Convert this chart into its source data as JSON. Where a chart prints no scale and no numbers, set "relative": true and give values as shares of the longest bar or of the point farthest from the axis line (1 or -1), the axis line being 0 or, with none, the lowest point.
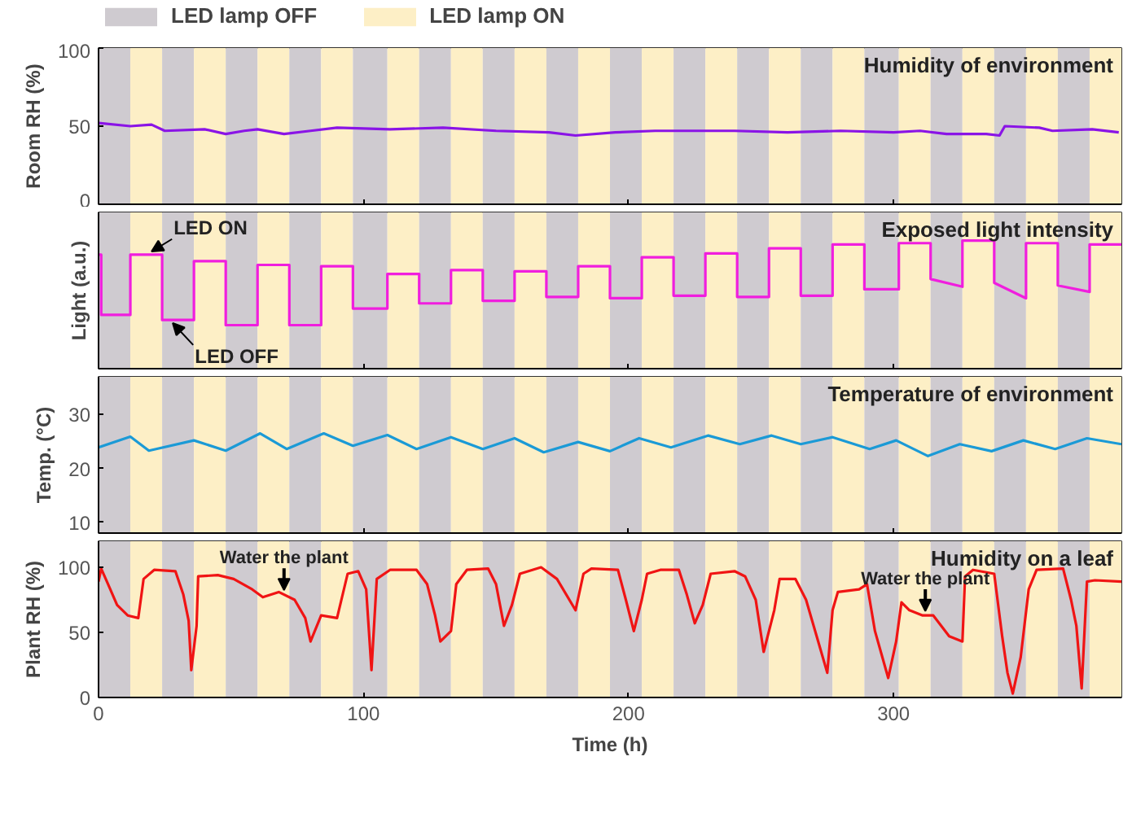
{
  "chart_data": [
    {
      "type": "line",
      "title": "Humidity of environment",
      "ylabel": "Room RH (%)",
      "xlim": [
        0,
        386
      ],
      "xticks": [
        0,
        100,
        200,
        300
      ],
      "ylim": [
        0,
        100
      ],
      "yticks": [
        0,
        50,
        100
      ],
      "tick_labels": "y",
      "legend": "top",
      "grid": false,
      "series": [
        {
          "color": "#8a14e6",
          "x": [
            0,
            12,
            20,
            25,
            40,
            48,
            55,
            60,
            70,
            80,
            90,
            110,
            130,
            150,
            170,
            180,
            195,
            210,
            240,
            260,
            280,
            300,
            310,
            320,
            335,
            340,
            342,
            355,
            360,
            375,
            385
          ],
          "values": [
            52,
            50,
            51,
            47,
            48,
            45,
            47,
            48,
            45,
            47,
            49,
            48,
            49,
            47,
            46,
            44,
            46,
            47,
            47,
            46,
            47,
            46,
            47,
            45,
            45,
            44,
            50,
            49,
            47,
            48,
            46
          ]
        }
      ],
      "bands": [
        {
          "axis": "x",
          "from": 0,
          "to": 12,
          "color": "#cfcbd0",
          "label": "LED lamp OFF"
        },
        {
          "axis": "x",
          "from": 12,
          "to": 24,
          "color": "#fdefc6",
          "label": "LED lamp ON"
        },
        {
          "axis": "x",
          "from": 24,
          "to": 36,
          "color": "#cfcbd0"
        },
        {
          "axis": "x",
          "from": 36,
          "to": 48,
          "color": "#fdefc6"
        },
        {
          "axis": "x",
          "from": 48,
          "to": 60,
          "color": "#cfcbd0"
        },
        {
          "axis": "x",
          "from": 60,
          "to": 72,
          "color": "#fdefc6"
        },
        {
          "axis": "x",
          "from": 72,
          "to": 84,
          "color": "#cfcbd0"
        },
        {
          "axis": "x",
          "from": 84,
          "to": 96,
          "color": "#fdefc6"
        },
        {
          "axis": "x",
          "from": 96,
          "to": 109,
          "color": "#cfcbd0"
        },
        {
          "axis": "x",
          "from": 109,
          "to": 121,
          "color": "#fdefc6"
        },
        {
          "axis": "x",
          "from": 121,
          "to": 133,
          "color": "#cfcbd0"
        },
        {
          "axis": "x",
          "from": 133,
          "to": 145,
          "color": "#fdefc6"
        },
        {
          "axis": "x",
          "from": 145,
          "to": 157,
          "color": "#cfcbd0"
        },
        {
          "axis": "x",
          "from": 157,
          "to": 169,
          "color": "#fdefc6"
        },
        {
          "axis": "x",
          "from": 169,
          "to": 181,
          "color": "#cfcbd0"
        },
        {
          "axis": "x",
          "from": 181,
          "to": 193,
          "color": "#fdefc6"
        },
        {
          "axis": "x",
          "from": 193,
          "to": 205,
          "color": "#cfcbd0"
        },
        {
          "axis": "x",
          "from": 205,
          "to": 217,
          "color": "#fdefc6"
        },
        {
          "axis": "x",
          "from": 217,
          "to": 229,
          "color": "#cfcbd0"
        },
        {
          "axis": "x",
          "from": 229,
          "to": 241,
          "color": "#fdefc6"
        },
        {
          "axis": "x",
          "from": 241,
          "to": 253,
          "color": "#cfcbd0"
        },
        {
          "axis": "x",
          "from": 253,
          "to": 265,
          "color": "#fdefc6"
        },
        {
          "axis": "x",
          "from": 265,
          "to": 277,
          "color": "#cfcbd0"
        },
        {
          "axis": "x",
          "from": 277,
          "to": 289,
          "color": "#fdefc6"
        },
        {
          "axis": "x",
          "from": 289,
          "to": 302,
          "color": "#cfcbd0"
        },
        {
          "axis": "x",
          "from": 302,
          "to": 314,
          "color": "#fdefc6"
        },
        {
          "axis": "x",
          "from": 314,
          "to": 326,
          "color": "#cfcbd0"
        },
        {
          "axis": "x",
          "from": 326,
          "to": 338,
          "color": "#fdefc6"
        },
        {
          "axis": "x",
          "from": 338,
          "to": 350,
          "color": "#cfcbd0"
        },
        {
          "axis": "x",
          "from": 350,
          "to": 362,
          "color": "#fdefc6"
        },
        {
          "axis": "x",
          "from": 362,
          "to": 374,
          "color": "#cfcbd0"
        },
        {
          "axis": "x",
          "from": 374,
          "to": 386,
          "color": "#fdefc6"
        }
      ]
    },
    {
      "type": "line",
      "title": "Exposed light intensity",
      "ylabel": "Light (a.u.)",
      "xlim": [
        0,
        386
      ],
      "xticks": [
        0,
        100,
        200,
        300
      ],
      "relative": true,
      "tick_labels": false,
      "grid": false,
      "series": [
        {
          "color": "#f01ede",
          "x": [
            0,
            1,
            1,
            12,
            12,
            24,
            24,
            36,
            36,
            48,
            48,
            60,
            60,
            72,
            72,
            84,
            84,
            96,
            96,
            109,
            109,
            121,
            121,
            133,
            133,
            145,
            145,
            157,
            157,
            169,
            169,
            181,
            181,
            193,
            193,
            205,
            205,
            217,
            217,
            229,
            229,
            241,
            241,
            253,
            253,
            265,
            265,
            277,
            277,
            289,
            289,
            302,
            302,
            314,
            314,
            326,
            326,
            338,
            338,
            350,
            350,
            362,
            362,
            374,
            374,
            386
          ],
          "values": [
            0.89,
            0.89,
            0.42,
            0.42,
            0.89,
            0.89,
            0.38,
            0.38,
            0.84,
            0.84,
            0.34,
            0.34,
            0.81,
            0.81,
            0.34,
            0.34,
            0.8,
            0.8,
            0.47,
            0.47,
            0.74,
            0.74,
            0.51,
            0.51,
            0.77,
            0.77,
            0.53,
            0.53,
            0.76,
            0.76,
            0.56,
            0.56,
            0.8,
            0.8,
            0.55,
            0.55,
            0.87,
            0.87,
            0.57,
            0.57,
            0.9,
            0.9,
            0.56,
            0.56,
            0.94,
            0.94,
            0.57,
            0.57,
            0.97,
            0.97,
            0.62,
            0.62,
            0.98,
            0.98,
            0.7,
            0.64,
            1.0,
            1.0,
            0.67,
            0.55,
            0.98,
            0.98,
            0.65,
            0.6,
            0.97,
            0.97
          ]
        }
      ],
      "annotations": [
        {
          "text": "LED ON",
          "x": 20,
          "y": 0.89
        },
        {
          "text": "LED OFF",
          "x": 28,
          "y": 0.38
        }
      ],
      "bands": [
        {
          "axis": "x",
          "from": 0,
          "to": 12,
          "color": "#cfcbd0"
        },
        {
          "axis": "x",
          "from": 12,
          "to": 24,
          "color": "#fdefc6"
        },
        {
          "axis": "x",
          "from": 24,
          "to": 36,
          "color": "#cfcbd0"
        },
        {
          "axis": "x",
          "from": 36,
          "to": 48,
          "color": "#fdefc6"
        },
        {
          "axis": "x",
          "from": 48,
          "to": 60,
          "color": "#cfcbd0"
        },
        {
          "axis": "x",
          "from": 60,
          "to": 72,
          "color": "#fdefc6"
        },
        {
          "axis": "x",
          "from": 72,
          "to": 84,
          "color": "#cfcbd0"
        },
        {
          "axis": "x",
          "from": 84,
          "to": 96,
          "color": "#fdefc6"
        },
        {
          "axis": "x",
          "from": 96,
          "to": 109,
          "color": "#cfcbd0"
        },
        {
          "axis": "x",
          "from": 109,
          "to": 121,
          "color": "#fdefc6"
        },
        {
          "axis": "x",
          "from": 121,
          "to": 133,
          "color": "#cfcbd0"
        },
        {
          "axis": "x",
          "from": 133,
          "to": 145,
          "color": "#fdefc6"
        },
        {
          "axis": "x",
          "from": 145,
          "to": 157,
          "color": "#cfcbd0"
        },
        {
          "axis": "x",
          "from": 157,
          "to": 169,
          "color": "#fdefc6"
        },
        {
          "axis": "x",
          "from": 169,
          "to": 181,
          "color": "#cfcbd0"
        },
        {
          "axis": "x",
          "from": 181,
          "to": 193,
          "color": "#fdefc6"
        },
        {
          "axis": "x",
          "from": 193,
          "to": 205,
          "color": "#cfcbd0"
        },
        {
          "axis": "x",
          "from": 205,
          "to": 217,
          "color": "#fdefc6"
        },
        {
          "axis": "x",
          "from": 217,
          "to": 229,
          "color": "#cfcbd0"
        },
        {
          "axis": "x",
          "from": 229,
          "to": 241,
          "color": "#fdefc6"
        },
        {
          "axis": "x",
          "from": 241,
          "to": 253,
          "color": "#cfcbd0"
        },
        {
          "axis": "x",
          "from": 253,
          "to": 265,
          "color": "#fdefc6"
        },
        {
          "axis": "x",
          "from": 265,
          "to": 277,
          "color": "#cfcbd0"
        },
        {
          "axis": "x",
          "from": 277,
          "to": 289,
          "color": "#fdefc6"
        },
        {
          "axis": "x",
          "from": 289,
          "to": 302,
          "color": "#cfcbd0"
        },
        {
          "axis": "x",
          "from": 302,
          "to": 314,
          "color": "#fdefc6"
        },
        {
          "axis": "x",
          "from": 314,
          "to": 326,
          "color": "#cfcbd0"
        },
        {
          "axis": "x",
          "from": 326,
          "to": 338,
          "color": "#fdefc6"
        },
        {
          "axis": "x",
          "from": 338,
          "to": 350,
          "color": "#cfcbd0"
        },
        {
          "axis": "x",
          "from": 350,
          "to": 362,
          "color": "#fdefc6"
        },
        {
          "axis": "x",
          "from": 362,
          "to": 374,
          "color": "#cfcbd0"
        },
        {
          "axis": "x",
          "from": 374,
          "to": 386,
          "color": "#fdefc6"
        }
      ]
    },
    {
      "type": "line",
      "title": "Temperature of environment",
      "ylabel": "Temp. (°C)",
      "xlim": [
        0,
        386
      ],
      "xticks": [
        0,
        100,
        200,
        300
      ],
      "ylim": [
        8,
        37
      ],
      "yticks": [
        10,
        20,
        30
      ],
      "tick_labels": "y",
      "grid": false,
      "series": [
        {
          "color": "#1b9ad6",
          "x": [
            0,
            12,
            19,
            36,
            48,
            61,
            71,
            85,
            96,
            109,
            120,
            133,
            145,
            157,
            168,
            181,
            193,
            204,
            216,
            230,
            242,
            254,
            265,
            277,
            291,
            301,
            313,
            325,
            337,
            349,
            361,
            373,
            386
          ],
          "values": [
            23.9,
            25.9,
            23.3,
            25.2,
            23.3,
            26.5,
            23.6,
            26.5,
            24.2,
            26.2,
            23.6,
            25.8,
            23.6,
            25.6,
            23.0,
            24.9,
            23.2,
            25.6,
            23.9,
            26.1,
            24.5,
            26.1,
            24.5,
            25.8,
            23.6,
            25.2,
            22.3,
            24.5,
            23.2,
            25.2,
            23.6,
            25.6,
            24.5
          ]
        }
      ],
      "bands": [
        {
          "axis": "x",
          "from": 0,
          "to": 12,
          "color": "#cfcbd0"
        },
        {
          "axis": "x",
          "from": 12,
          "to": 24,
          "color": "#fdefc6"
        },
        {
          "axis": "x",
          "from": 24,
          "to": 36,
          "color": "#cfcbd0"
        },
        {
          "axis": "x",
          "from": 36,
          "to": 48,
          "color": "#fdefc6"
        },
        {
          "axis": "x",
          "from": 48,
          "to": 60,
          "color": "#cfcbd0"
        },
        {
          "axis": "x",
          "from": 60,
          "to": 72,
          "color": "#fdefc6"
        },
        {
          "axis": "x",
          "from": 72,
          "to": 84,
          "color": "#cfcbd0"
        },
        {
          "axis": "x",
          "from": 84,
          "to": 96,
          "color": "#fdefc6"
        },
        {
          "axis": "x",
          "from": 96,
          "to": 109,
          "color": "#cfcbd0"
        },
        {
          "axis": "x",
          "from": 109,
          "to": 121,
          "color": "#fdefc6"
        },
        {
          "axis": "x",
          "from": 121,
          "to": 133,
          "color": "#cfcbd0"
        },
        {
          "axis": "x",
          "from": 133,
          "to": 145,
          "color": "#fdefc6"
        },
        {
          "axis": "x",
          "from": 145,
          "to": 157,
          "color": "#cfcbd0"
        },
        {
          "axis": "x",
          "from": 157,
          "to": 169,
          "color": "#fdefc6"
        },
        {
          "axis": "x",
          "from": 169,
          "to": 181,
          "color": "#cfcbd0"
        },
        {
          "axis": "x",
          "from": 181,
          "to": 193,
          "color": "#fdefc6"
        },
        {
          "axis": "x",
          "from": 193,
          "to": 205,
          "color": "#cfcbd0"
        },
        {
          "axis": "x",
          "from": 205,
          "to": 217,
          "color": "#fdefc6"
        },
        {
          "axis": "x",
          "from": 217,
          "to": 229,
          "color": "#cfcbd0"
        },
        {
          "axis": "x",
          "from": 229,
          "to": 241,
          "color": "#fdefc6"
        },
        {
          "axis": "x",
          "from": 241,
          "to": 253,
          "color": "#cfcbd0"
        },
        {
          "axis": "x",
          "from": 253,
          "to": 265,
          "color": "#fdefc6"
        },
        {
          "axis": "x",
          "from": 265,
          "to": 277,
          "color": "#cfcbd0"
        },
        {
          "axis": "x",
          "from": 277,
          "to": 289,
          "color": "#fdefc6"
        },
        {
          "axis": "x",
          "from": 289,
          "to": 302,
          "color": "#cfcbd0"
        },
        {
          "axis": "x",
          "from": 302,
          "to": 314,
          "color": "#fdefc6"
        },
        {
          "axis": "x",
          "from": 314,
          "to": 326,
          "color": "#cfcbd0"
        },
        {
          "axis": "x",
          "from": 326,
          "to": 338,
          "color": "#fdefc6"
        },
        {
          "axis": "x",
          "from": 338,
          "to": 350,
          "color": "#cfcbd0"
        },
        {
          "axis": "x",
          "from": 350,
          "to": 362,
          "color": "#fdefc6"
        },
        {
          "axis": "x",
          "from": 362,
          "to": 374,
          "color": "#cfcbd0"
        },
        {
          "axis": "x",
          "from": 374,
          "to": 386,
          "color": "#fdefc6"
        }
      ]
    },
    {
      "type": "line",
      "title": "Humidity on a leaf",
      "ylabel": "Plant RH (%)",
      "xlabel": "Time (h)",
      "xlim": [
        0,
        386
      ],
      "xticks": [
        0,
        100,
        200,
        300
      ],
      "ylim": [
        0,
        120
      ],
      "yticks": [
        0,
        50,
        100
      ],
      "grid": false,
      "series": [
        {
          "color": "#f01414",
          "x": [
            0,
            1,
            3.6,
            7,
            11,
            15,
            17,
            21,
            29,
            32,
            34,
            35,
            37,
            37.6,
            45,
            51,
            58,
            62,
            68,
            74,
            78,
            80,
            84,
            90,
            94,
            98,
            101,
            103,
            105,
            110,
            120,
            124,
            127,
            129,
            133,
            135,
            139,
            147,
            150,
            153,
            156,
            159,
            167,
            173,
            180,
            183,
            186,
            196,
            199,
            202,
            205,
            207,
            212,
            219,
            222,
            225,
            228,
            231,
            240,
            244,
            248,
            251,
            255,
            257,
            263,
            267,
            271,
            275,
            277,
            279,
            287,
            290,
            293,
            298,
            301,
            303,
            306,
            311,
            315,
            321,
            326,
            327,
            330,
            338,
            341,
            343,
            345,
            348,
            351,
            354,
            364,
            367,
            369,
            371,
            373,
            376,
            386
          ],
          "values": [
            89,
            99,
            87,
            71,
            63,
            61,
            91,
            98,
            97,
            79,
            59,
            21,
            55,
            93,
            94,
            91,
            83,
            77,
            81,
            75,
            61,
            43,
            63,
            61,
            95,
            97,
            83,
            21,
            91,
            98,
            98,
            87,
            63,
            43,
            51,
            87,
            98,
            99,
            87,
            55,
            71,
            95,
            100,
            91,
            67,
            95,
            99,
            98,
            75,
            51,
            75,
            95,
            98,
            98,
            79,
            57,
            71,
            95,
            97,
            93,
            75,
            35,
            67,
            91,
            91,
            75,
            47,
            19,
            67,
            81,
            83,
            87,
            51,
            15,
            43,
            73,
            67,
            63,
            63,
            47,
            43,
            93,
            98,
            95,
            47,
            19,
            3,
            31,
            83,
            98,
            99,
            75,
            55,
            7,
            89,
            90,
            89
          ]
        }
      ],
      "annotations": [
        {
          "text": "Water the plant",
          "x": 70,
          "y": 80
        },
        {
          "text": "Water the plant",
          "x": 312,
          "y": 64
        }
      ],
      "bands": [
        {
          "axis": "x",
          "from": 0,
          "to": 12,
          "color": "#cfcbd0"
        },
        {
          "axis": "x",
          "from": 12,
          "to": 24,
          "color": "#fdefc6"
        },
        {
          "axis": "x",
          "from": 24,
          "to": 36,
          "color": "#cfcbd0"
        },
        {
          "axis": "x",
          "from": 36,
          "to": 48,
          "color": "#fdefc6"
        },
        {
          "axis": "x",
          "from": 48,
          "to": 60,
          "color": "#cfcbd0"
        },
        {
          "axis": "x",
          "from": 60,
          "to": 72,
          "color": "#fdefc6"
        },
        {
          "axis": "x",
          "from": 72,
          "to": 84,
          "color": "#cfcbd0"
        },
        {
          "axis": "x",
          "from": 84,
          "to": 96,
          "color": "#fdefc6"
        },
        {
          "axis": "x",
          "from": 96,
          "to": 109,
          "color": "#cfcbd0"
        },
        {
          "axis": "x",
          "from": 109,
          "to": 121,
          "color": "#fdefc6"
        },
        {
          "axis": "x",
          "from": 121,
          "to": 133,
          "color": "#cfcbd0"
        },
        {
          "axis": "x",
          "from": 133,
          "to": 145,
          "color": "#fdefc6"
        },
        {
          "axis": "x",
          "from": 145,
          "to": 157,
          "color": "#cfcbd0"
        },
        {
          "axis": "x",
          "from": 157,
          "to": 169,
          "color": "#fdefc6"
        },
        {
          "axis": "x",
          "from": 169,
          "to": 181,
          "color": "#cfcbd0"
        },
        {
          "axis": "x",
          "from": 181,
          "to": 193,
          "color": "#fdefc6"
        },
        {
          "axis": "x",
          "from": 193,
          "to": 205,
          "color": "#cfcbd0"
        },
        {
          "axis": "x",
          "from": 205,
          "to": 217,
          "color": "#fdefc6"
        },
        {
          "axis": "x",
          "from": 217,
          "to": 229,
          "color": "#cfcbd0"
        },
        {
          "axis": "x",
          "from": 229,
          "to": 241,
          "color": "#fdefc6"
        },
        {
          "axis": "x",
          "from": 241,
          "to": 253,
          "color": "#cfcbd0"
        },
        {
          "axis": "x",
          "from": 253,
          "to": 265,
          "color": "#fdefc6"
        },
        {
          "axis": "x",
          "from": 265,
          "to": 277,
          "color": "#cfcbd0"
        },
        {
          "axis": "x",
          "from": 277,
          "to": 289,
          "color": "#fdefc6"
        },
        {
          "axis": "x",
          "from": 289,
          "to": 302,
          "color": "#cfcbd0"
        },
        {
          "axis": "x",
          "from": 302,
          "to": 314,
          "color": "#fdefc6"
        },
        {
          "axis": "x",
          "from": 314,
          "to": 326,
          "color": "#cfcbd0"
        },
        {
          "axis": "x",
          "from": 326,
          "to": 338,
          "color": "#fdefc6"
        },
        {
          "axis": "x",
          "from": 338,
          "to": 350,
          "color": "#cfcbd0"
        },
        {
          "axis": "x",
          "from": 350,
          "to": 362,
          "color": "#fdefc6"
        },
        {
          "axis": "x",
          "from": 362,
          "to": 374,
          "color": "#cfcbd0"
        },
        {
          "axis": "x",
          "from": 374,
          "to": 386,
          "color": "#fdefc6"
        }
      ]
    }
  ]
}
